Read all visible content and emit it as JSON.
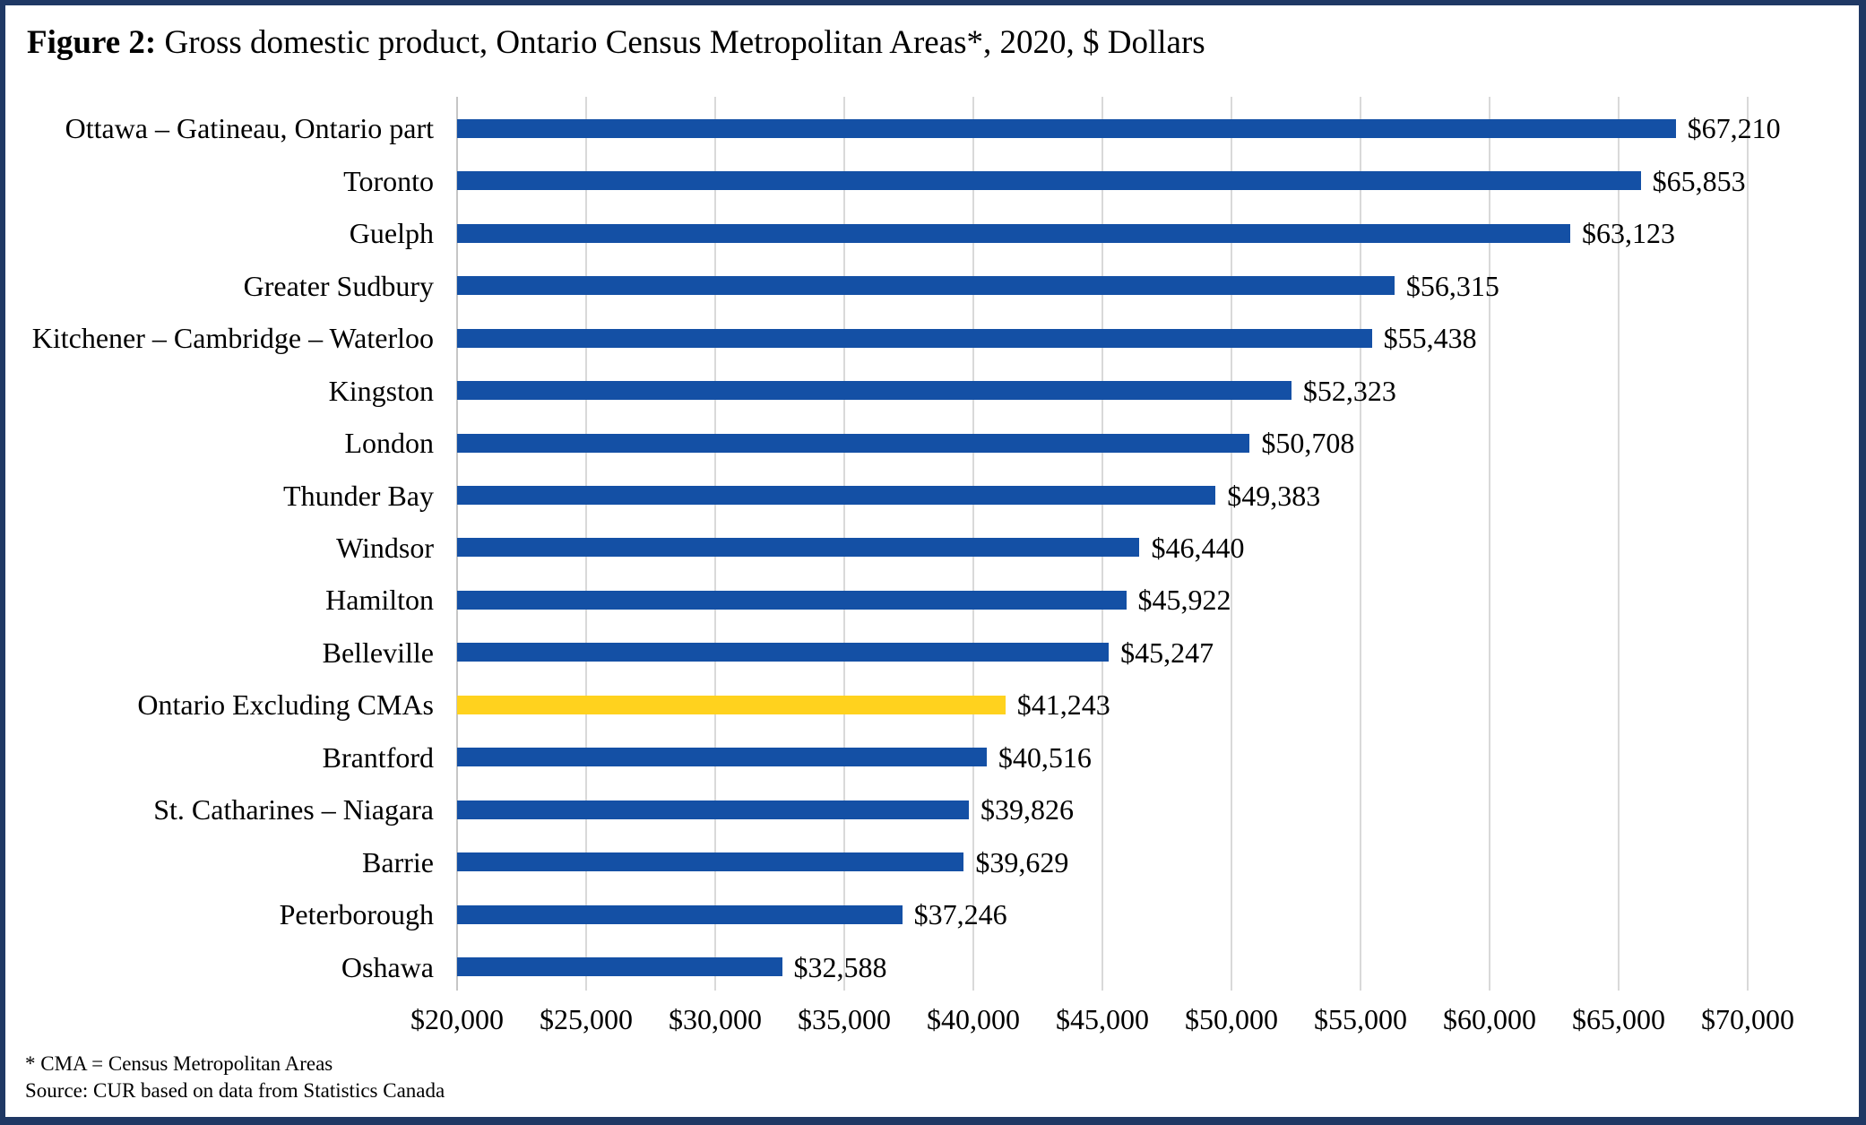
{
  "title": {
    "prefix": "Figure 2:",
    "text": " Gross domestic product, Ontario Census Metropolitan Areas*, 2020, $ Dollars"
  },
  "chart_data": {
    "type": "bar",
    "orientation": "horizontal",
    "title": "Figure 2: Gross domestic product, Ontario Census Metropolitan Areas*, 2020, $ Dollars",
    "categories": [
      "Ottawa – Gatineau, Ontario part",
      "Toronto",
      "Guelph",
      "Greater Sudbury",
      "Kitchener – Cambridge – Waterloo",
      "Kingston",
      "London",
      "Thunder Bay",
      "Windsor",
      "Hamilton",
      "Belleville",
      "Ontario Excluding CMAs",
      "Brantford",
      "St. Catharines – Niagara",
      "Barrie",
      "Peterborough",
      "Oshawa"
    ],
    "values": [
      67210,
      65853,
      63123,
      56315,
      55438,
      52323,
      50708,
      49383,
      46440,
      45922,
      45247,
      41243,
      40516,
      39826,
      39629,
      37246,
      32588
    ],
    "value_labels": [
      "$67,210",
      "$65,853",
      "$63,123",
      "$56,315",
      "$55,438",
      "$52,323",
      "$50,708",
      "$49,383",
      "$46,440",
      "$45,922",
      "$45,247",
      "$41,243",
      "$40,516",
      "$39,826",
      "$39,629",
      "$37,246",
      "$32,588"
    ],
    "highlight_category": "Ontario Excluding CMAs",
    "bar_color": "#1450A5",
    "highlight_color": "#FFD21E",
    "xlim": [
      20000,
      70000
    ],
    "x_tick_step": 5000,
    "x_tick_labels": [
      "$20,000",
      "$25,000",
      "$30,000",
      "$35,000",
      "$40,000",
      "$45,000",
      "$50,000",
      "$55,000",
      "$60,000",
      "$65,000",
      "$70,000"
    ],
    "grid": true,
    "gridline_color": "#D9D9D9",
    "legend": "none"
  },
  "footnotes": [
    "* CMA = Census Metropolitan Areas",
    "Source: CUR based on data from Statistics Canada"
  ],
  "colors": {
    "border": "#1F3864",
    "background": "#FFFFFF",
    "text": "#000000"
  }
}
